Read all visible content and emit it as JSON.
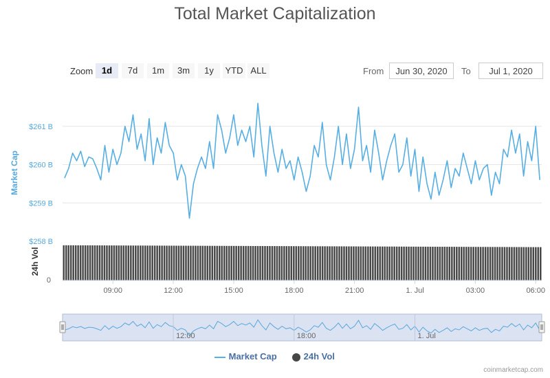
{
  "title": "Total Market Capitalization",
  "zoom": {
    "label": "Zoom",
    "buttons": [
      "1d",
      "7d",
      "1m",
      "3m",
      "1y",
      "YTD",
      "ALL"
    ],
    "active": "1d"
  },
  "range": {
    "from_label": "From",
    "from_value": "Jun 30, 2020",
    "to_label": "To",
    "to_value": "Jul 1, 2020"
  },
  "legend": {
    "market_cap": "Market Cap",
    "volume": "24h Vol"
  },
  "credit": "coinmarketcap.com",
  "colors": {
    "line": "#57aee3",
    "volume": "#474747",
    "navigator_fill": "#ccd6eb",
    "grid": "#e6e6e6",
    "axis_text": "#666666",
    "y_label": "#55a8dd"
  },
  "chart_data": {
    "type": "line",
    "title": "Total Market Capitalization",
    "x_label": "",
    "y_label": "Market Cap",
    "y2_label": "24h Vol",
    "y_unit": "B USD",
    "x_range": [
      6.5,
      30.3
    ],
    "y_range": [
      258,
      262
    ],
    "x_ticks": [
      {
        "x": 9,
        "label": "09:00"
      },
      {
        "x": 12,
        "label": "12:00"
      },
      {
        "x": 15,
        "label": "15:00"
      },
      {
        "x": 18,
        "label": "18:00"
      },
      {
        "x": 21,
        "label": "21:00"
      },
      {
        "x": 24,
        "label": "1. Jul"
      },
      {
        "x": 27,
        "label": "03:00"
      },
      {
        "x": 30,
        "label": "06:00"
      }
    ],
    "y_ticks": [
      {
        "y": 259,
        "label": "$259 B"
      },
      {
        "y": 260,
        "label": "$260 B"
      },
      {
        "y": 261,
        "label": "$261 B"
      },
      {
        "y": 258,
        "label": "$258 B"
      }
    ],
    "vol_ticks": [
      {
        "y": 0,
        "label": "0"
      }
    ],
    "navigator_ticks": [
      {
        "x": 12,
        "label": "12:00"
      },
      {
        "x": 18,
        "label": "18:00"
      },
      {
        "x": 24,
        "label": "1. Jul"
      }
    ],
    "grid": true,
    "legend_position": "bottom-center",
    "series": [
      {
        "name": "Market Cap",
        "type": "line",
        "x": [
          6.6,
          6.8,
          7.0,
          7.2,
          7.4,
          7.6,
          7.8,
          8.0,
          8.2,
          8.4,
          8.6,
          8.8,
          9.0,
          9.2,
          9.4,
          9.6,
          9.8,
          10.0,
          10.2,
          10.4,
          10.6,
          10.8,
          11.0,
          11.2,
          11.4,
          11.6,
          11.8,
          12.0,
          12.2,
          12.4,
          12.6,
          12.8,
          13.0,
          13.2,
          13.4,
          13.6,
          13.8,
          14.0,
          14.2,
          14.4,
          14.6,
          14.8,
          15.0,
          15.2,
          15.4,
          15.6,
          15.8,
          16.0,
          16.2,
          16.4,
          16.6,
          16.8,
          17.0,
          17.2,
          17.4,
          17.6,
          17.8,
          18.0,
          18.2,
          18.4,
          18.6,
          18.8,
          19.0,
          19.2,
          19.4,
          19.6,
          19.8,
          20.0,
          20.2,
          20.4,
          20.6,
          20.8,
          21.0,
          21.2,
          21.4,
          21.6,
          21.8,
          22.0,
          22.2,
          22.4,
          22.6,
          22.8,
          23.0,
          23.2,
          23.4,
          23.6,
          23.8,
          24.0,
          24.2,
          24.4,
          24.6,
          24.8,
          25.0,
          25.2,
          25.4,
          25.6,
          25.8,
          26.0,
          26.2,
          26.4,
          26.6,
          26.8,
          27.0,
          27.2,
          27.4,
          27.6,
          27.8,
          28.0,
          28.2,
          28.4,
          28.6,
          28.8,
          29.0,
          29.2,
          29.4,
          29.6,
          29.8,
          30.0,
          30.2
        ],
        "values": [
          259.65,
          259.9,
          260.3,
          260.1,
          260.35,
          259.95,
          260.2,
          260.15,
          259.9,
          259.6,
          260.5,
          259.8,
          260.4,
          260.0,
          260.3,
          261.0,
          260.6,
          261.3,
          260.4,
          260.8,
          260.1,
          261.2,
          260.0,
          260.7,
          260.3,
          261.1,
          260.5,
          260.3,
          259.6,
          260.0,
          259.7,
          258.6,
          259.5,
          259.9,
          260.2,
          259.9,
          260.6,
          259.9,
          261.3,
          260.9,
          260.3,
          260.7,
          261.3,
          260.5,
          260.9,
          260.6,
          261.0,
          260.2,
          261.6,
          260.5,
          259.7,
          261.0,
          260.3,
          259.8,
          260.4,
          259.9,
          260.1,
          259.6,
          260.2,
          259.8,
          259.3,
          259.7,
          260.5,
          260.2,
          261.1,
          260.0,
          259.6,
          260.2,
          261.0,
          260.0,
          260.8,
          259.9,
          260.4,
          261.5,
          260.1,
          260.5,
          259.8,
          260.9,
          260.3,
          259.6,
          260.1,
          260.5,
          260.8,
          259.8,
          260.0,
          260.7,
          259.7,
          260.4,
          259.3,
          260.2,
          259.5,
          259.1,
          259.8,
          259.2,
          259.6,
          260.1,
          259.4,
          259.9,
          259.7,
          260.3,
          259.9,
          259.5,
          260.1,
          259.6,
          259.9,
          260.0,
          259.2,
          259.8,
          259.5,
          260.4,
          260.2,
          260.9,
          260.3,
          260.8,
          259.7,
          260.6,
          260.1,
          261.0,
          259.6
        ]
      },
      {
        "name": "24h Vol",
        "type": "column",
        "note_values": "fractions of the volume-panel height",
        "count": 200,
        "level_start": 0.93,
        "level_end": 0.88
      }
    ]
  }
}
